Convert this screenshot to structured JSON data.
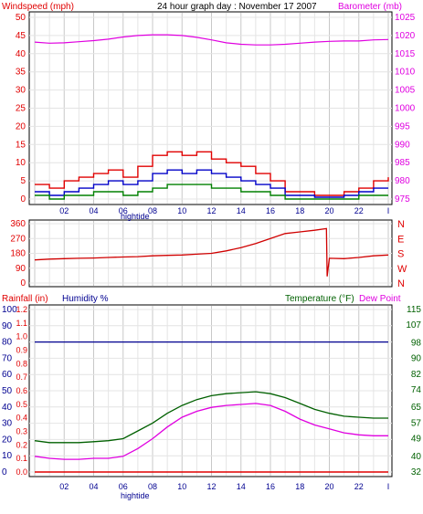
{
  "header": {
    "left_label": "Windspeed (mph)",
    "center_title": "24 hour graph day : November 17 2007",
    "right_label": "Barometer (mb)"
  },
  "footer": {
    "hightide_label": "hightide"
  },
  "x_axis": {
    "ticks": [
      "02",
      "04",
      "06",
      "08",
      "10",
      "12",
      "14",
      "16",
      "18",
      "20",
      "22",
      "I"
    ]
  },
  "colors": {
    "wind": "#e00000",
    "wind_avg": "#0000c8",
    "wind_low": "#008000",
    "baro": "#e000e0",
    "dir": "#d00000",
    "humidity": "#000090",
    "temp": "#006000",
    "dew": "#e000e0",
    "rain": "#e00000",
    "grid": "#c8c8c8"
  },
  "chart_data": [
    {
      "id": "wind-baro",
      "type": "line",
      "title": "24 hour graph day : November 17 2007",
      "left_axis": {
        "label": "Windspeed (mph)",
        "ylim": [
          0,
          50
        ],
        "ticks": [
          "0",
          "5",
          "10",
          "15",
          "20",
          "25",
          "30",
          "35",
          "40",
          "45",
          "50"
        ]
      },
      "right_axis": {
        "label": "Barometer (mb)",
        "ylim": [
          975,
          1025
        ],
        "ticks": [
          "975",
          "980",
          "985",
          "990",
          "995",
          "1000",
          "1005",
          "1010",
          "1015",
          "1020",
          "1025"
        ]
      },
      "x": [
        0,
        1,
        2,
        3,
        4,
        5,
        6,
        7,
        8,
        9,
        10,
        11,
        12,
        13,
        14,
        15,
        16,
        17,
        18,
        19,
        20,
        21,
        22,
        23,
        24
      ],
      "series": [
        {
          "key": "gust",
          "axis": "left",
          "values": [
            4,
            3,
            5,
            6,
            7,
            8,
            6,
            9,
            12,
            13,
            12,
            13,
            11,
            10,
            9,
            7,
            5,
            2,
            2,
            1,
            1,
            2,
            3,
            5,
            6
          ]
        },
        {
          "key": "avg",
          "axis": "left",
          "values": [
            2,
            1,
            2,
            3,
            4,
            5,
            4,
            5,
            7,
            8,
            7,
            8,
            7,
            6,
            5,
            4,
            3,
            1,
            1,
            0.5,
            0.5,
            1,
            2,
            3,
            3
          ]
        },
        {
          "key": "low",
          "axis": "left",
          "values": [
            1,
            0,
            1,
            1,
            2,
            2,
            1,
            2,
            3,
            4,
            4,
            4,
            3,
            3,
            2,
            2,
            1,
            0,
            0,
            0,
            0,
            0,
            1,
            1,
            1
          ]
        },
        {
          "key": "barometer",
          "axis": "right",
          "values": [
            1018.2,
            1017.9,
            1018,
            1018.3,
            1018.6,
            1019,
            1019.6,
            1020,
            1020.2,
            1020.2,
            1020,
            1019.5,
            1018.8,
            1018,
            1017.6,
            1017.4,
            1017.4,
            1017.6,
            1017.9,
            1018.2,
            1018.4,
            1018.5,
            1018.5,
            1018.8,
            1018.9
          ]
        }
      ]
    },
    {
      "id": "direction",
      "type": "line",
      "left_axis": {
        "ylim": [
          0,
          360
        ],
        "ticks": [
          "0",
          "90",
          "180",
          "270",
          "360"
        ]
      },
      "right_axis": {
        "ticks": [
          "N",
          "E",
          "S",
          "W",
          "N"
        ]
      },
      "x": [
        0,
        1,
        2,
        3,
        4,
        5,
        6,
        7,
        8,
        9,
        10,
        11,
        12,
        13,
        14,
        15,
        16,
        17,
        18,
        19,
        19.8,
        19.85,
        20,
        21,
        22,
        23,
        24
      ],
      "series": [
        {
          "key": "wind_direction",
          "values": [
            140,
            145,
            148,
            150,
            152,
            155,
            158,
            160,
            165,
            168,
            170,
            175,
            180,
            195,
            215,
            240,
            270,
            300,
            310,
            320,
            330,
            40,
            150,
            148,
            155,
            165,
            170
          ]
        }
      ]
    },
    {
      "id": "rain-humidity-temp",
      "type": "line",
      "left_axis": {
        "labels": [
          "Rainfall (in)",
          "Humidity %"
        ],
        "rain_ticks": [
          "0.0",
          "0.1",
          "0.2",
          "0.3",
          "0.4",
          "0.5",
          "0.6",
          "0.7",
          "0.8",
          "0.9",
          "1.0",
          "1.1",
          "1.2"
        ],
        "humidity_ticks": [
          "0",
          "10",
          "20",
          "30",
          "40",
          "50",
          "60",
          "70",
          "80",
          "90",
          "100"
        ]
      },
      "right_axis": {
        "labels": [
          "Temperature (°F)",
          "Dew Point"
        ],
        "ylim": [
          32,
          115
        ],
        "ticks": [
          "32",
          "40",
          "49",
          "57",
          "65",
          "74",
          "82",
          "90",
          "98",
          "107",
          "115"
        ]
      },
      "x": [
        0,
        1,
        2,
        3,
        4,
        5,
        6,
        7,
        8,
        9,
        10,
        11,
        12,
        13,
        14,
        15,
        16,
        17,
        18,
        19,
        20,
        21,
        22,
        23,
        24
      ],
      "series": [
        {
          "key": "rainfall",
          "axis": "rain",
          "values": [
            0,
            0,
            0,
            0,
            0,
            0,
            0,
            0,
            0,
            0,
            0,
            0,
            0,
            0,
            0,
            0,
            0,
            0,
            0,
            0,
            0,
            0,
            0,
            0,
            0
          ]
        },
        {
          "key": "humidity",
          "axis": "humidity",
          "values": [
            80,
            80,
            80,
            80,
            80,
            80,
            80,
            80,
            80,
            80,
            80,
            80,
            80,
            80,
            80,
            80,
            80,
            80,
            80,
            80,
            80,
            80,
            80,
            80,
            80
          ]
        },
        {
          "key": "temperature",
          "axis": "temp",
          "values": [
            48,
            47,
            47,
            47,
            47.5,
            48,
            49,
            53,
            57,
            62,
            66,
            69,
            71,
            72,
            72.5,
            73,
            72,
            70,
            67,
            64,
            62,
            60.5,
            60,
            59.5,
            59.5
          ]
        },
        {
          "key": "dew_point",
          "axis": "temp",
          "values": [
            40,
            39,
            38.5,
            38.5,
            39,
            39,
            40,
            44,
            49,
            55,
            60,
            63,
            65,
            66,
            66.5,
            67,
            66,
            63,
            59,
            56,
            54,
            52,
            51,
            50.5,
            50.5
          ]
        }
      ]
    }
  ],
  "panel2_labels": {
    "rain_ticks": [
      "0.0",
      "0.1",
      "0.2",
      "0.3",
      "0.4",
      "0.5",
      "0.6",
      "0.7",
      "0.8",
      "0.9",
      "1.0",
      "1.1",
      "1.2"
    ]
  },
  "legend_labels": {
    "rainfall": "Rainfall (in)",
    "humidity": "Humidity %",
    "temperature": "Temperature (°F)",
    "dew_point": "Dew Point"
  }
}
